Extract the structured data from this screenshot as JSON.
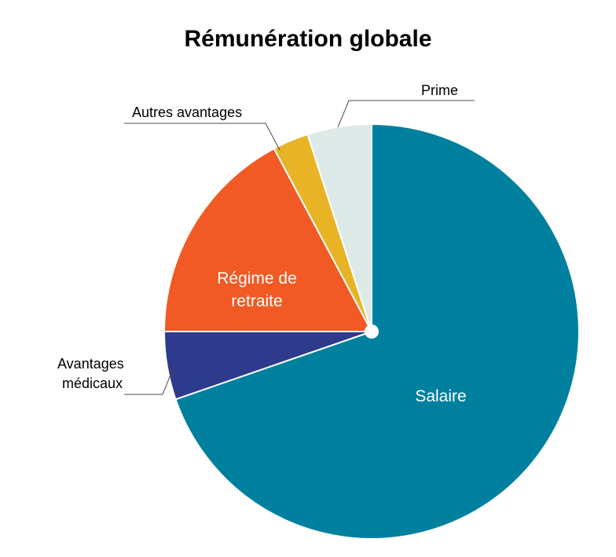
{
  "chart_data": {
    "type": "pie",
    "title": "Rémunération globale",
    "start_angle_deg": 0,
    "direction": "clockwise",
    "slices": [
      {
        "label": "Salaire",
        "value": 69.7,
        "color": "#00809F",
        "label_position": "inside"
      },
      {
        "label": "Avantages médicaux",
        "value": 5.3,
        "color": "#2E3A8C",
        "label_position": "outside-left"
      },
      {
        "label": "Régime de retraite",
        "value": 17.2,
        "color": "#F15A24",
        "label_position": "inside"
      },
      {
        "label": "Autres avantages",
        "value": 2.8,
        "color": "#E8B425",
        "label_position": "outside-left"
      },
      {
        "label": "Prime",
        "value": 5.0,
        "color": "#DDEAE8",
        "label_position": "outside-right"
      }
    ]
  },
  "labels": {
    "salaire": "Salaire",
    "medical_line1": "Avantages",
    "medical_line2": "médicaux",
    "retraite_line1": "Régime de",
    "retraite_line2": "retraite",
    "autres": "Autres avantages",
    "prime": "Prime"
  }
}
